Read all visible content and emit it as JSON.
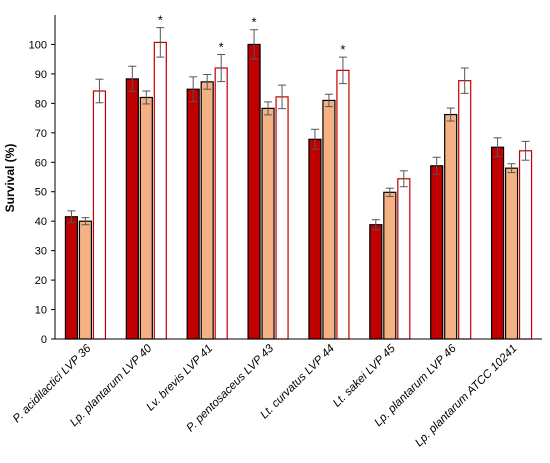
{
  "chart_data": {
    "type": "bar",
    "title": "",
    "xlabel": "",
    "ylabel": "Survival (%)",
    "ylim": [
      0,
      110
    ],
    "yticks": [
      0,
      10,
      20,
      30,
      40,
      50,
      60,
      70,
      80,
      90,
      100
    ],
    "grid": false,
    "legend": "none",
    "categories": [
      "P. acidilactici LVP 36",
      "Lp. plantarum LVP 40",
      "Lv. brevis LVP 41",
      "P. pentosaceus LVP 43",
      "Lt. curvatus LVP 44",
      "Lt. sakei LVP 45",
      "Lp. plantarum LVP 46",
      "Lp. plantarum ATCC 10241"
    ],
    "series": [
      {
        "fill": "#c00000",
        "stroke": "#000000",
        "values": [
          41.5,
          88.3,
          84.8,
          100.0,
          67.8,
          38.8,
          58.8,
          65.1
        ],
        "errors": [
          2.0,
          4.3,
          4.2,
          5.0,
          3.4,
          1.7,
          2.9,
          3.2
        ],
        "significance": [
          "",
          "",
          "",
          "*",
          "",
          "",
          "",
          ""
        ]
      },
      {
        "fill": "#f4b183",
        "stroke": "#000000",
        "values": [
          40.0,
          82.0,
          87.3,
          78.3,
          81.0,
          49.8,
          76.2,
          58.0
        ],
        "errors": [
          1.2,
          2.2,
          2.5,
          2.2,
          2.1,
          1.4,
          2.2,
          1.5
        ],
        "significance": [
          "",
          "",
          "",
          "",
          "",
          "",
          "",
          ""
        ]
      },
      {
        "fill": "#ffffff",
        "stroke": "#c00000",
        "values": [
          84.2,
          100.7,
          92.0,
          82.2,
          91.2,
          54.4,
          87.7,
          63.9
        ],
        "errors": [
          4.0,
          5.0,
          4.6,
          4.0,
          4.5,
          2.7,
          4.3,
          3.2
        ],
        "significance": [
          "",
          "*",
          "*",
          "",
          "*",
          "",
          "",
          ""
        ]
      }
    ]
  }
}
